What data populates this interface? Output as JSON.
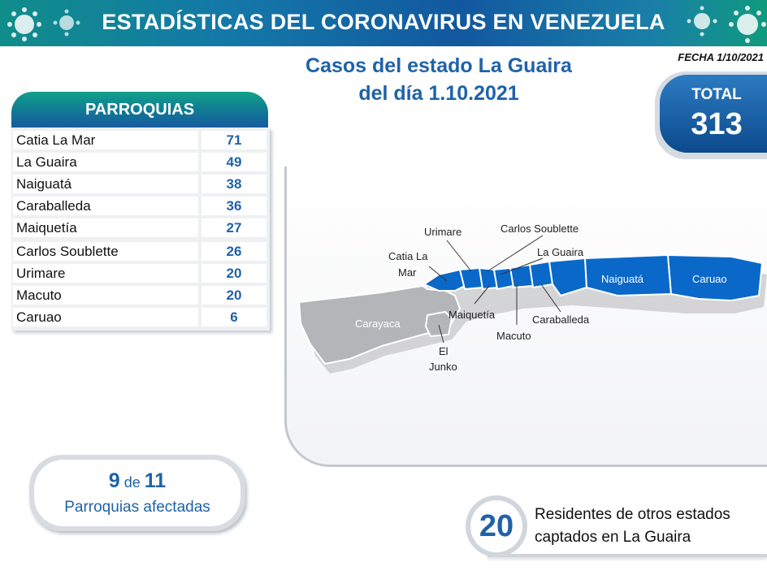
{
  "banner": {
    "title": "ESTADÍSTICAS DEL CORONAVIRUS EN VENEZUELA"
  },
  "date": "FECHA 1/10/2021",
  "headline": {
    "line1": "Casos del estado La Guaira",
    "line2": "del día 1.10.2021"
  },
  "total": {
    "label": "TOTAL",
    "value": "313"
  },
  "table": {
    "header": "PARROQUIAS",
    "rows": [
      {
        "name": "Catia La Mar",
        "value": "71"
      },
      {
        "name": "La Guaira",
        "value": "49"
      },
      {
        "name": "Naiguatá",
        "value": "38"
      },
      {
        "name": "Caraballeda",
        "value": "36"
      },
      {
        "name": "Maiquetía",
        "value": "27"
      },
      {
        "name": "Carlos Soublette",
        "value": "26"
      },
      {
        "name": "Urimare",
        "value": "20"
      },
      {
        "name": "Macuto",
        "value": "20"
      },
      {
        "name": "Caruao",
        "value": "6"
      }
    ]
  },
  "map": {
    "labels": {
      "urimare": "Urimare",
      "carlos_soublette": "Carlos Soublette",
      "la_guaira": "La Guaira",
      "catia_la_mar_1": "Catia La",
      "catia_la_mar_2": "Mar",
      "naiguata": "Naiguatá",
      "caruao": "Caruao",
      "carayaca": "Carayaca",
      "maiquetia": "Maiquetía",
      "caraballeda": "Caraballeda",
      "macuto": "Macuto",
      "el_junko_1": "El",
      "el_junko_2": "Junko"
    },
    "colors": {
      "affected": "#0a68c9",
      "unaffected": "#b3b5b8"
    }
  },
  "affected": {
    "count": "9",
    "connector": "de",
    "total": "11",
    "label": "Parroquias afectadas"
  },
  "residents": {
    "value": "20",
    "line1": "Residentes de otros estados",
    "line2": "captados en La Guaira"
  }
}
